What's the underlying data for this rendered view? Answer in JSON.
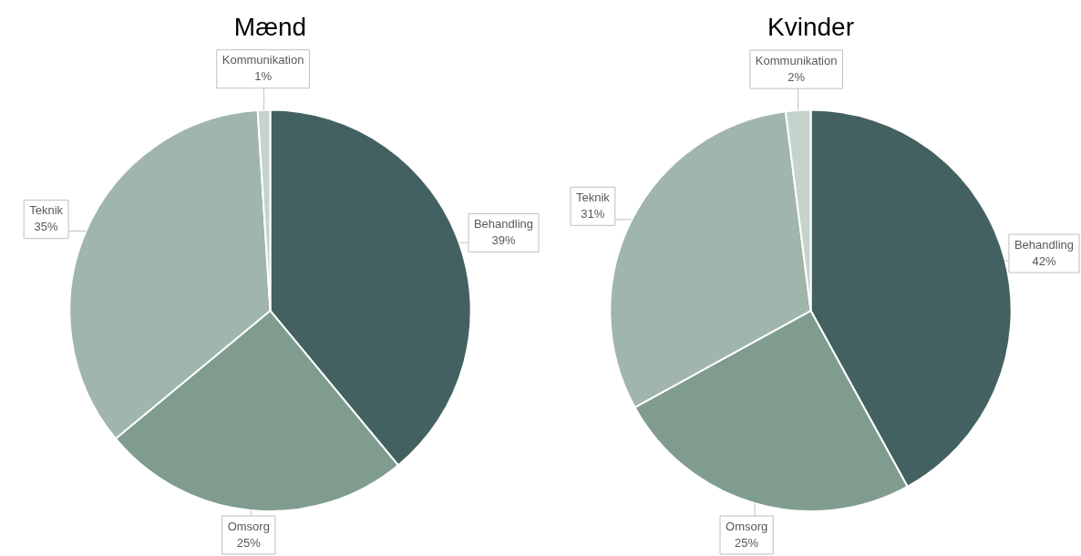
{
  "chart_data": [
    {
      "type": "pie",
      "title": "Mænd",
      "categories": [
        "Behandling",
        "Omsorg",
        "Teknik",
        "Kommunikation"
      ],
      "values": [
        39,
        25,
        35,
        1
      ],
      "value_labels": [
        "39%",
        "25%",
        "35%",
        "1%"
      ],
      "colors": [
        "#426160",
        "#7f9c8f",
        "#a0b5ab",
        "#c5d3ce"
      ]
    },
    {
      "type": "pie",
      "title": "Kvinder",
      "categories": [
        "Behandling",
        "Omsorg",
        "Teknik",
        "Kommunikation"
      ],
      "values": [
        42,
        25,
        31,
        2
      ],
      "value_labels": [
        "42%",
        "25%",
        "31%",
        "2%"
      ],
      "colors": [
        "#426160",
        "#7f9c8f",
        "#a0b5ab",
        "#c5d3ce"
      ]
    }
  ]
}
